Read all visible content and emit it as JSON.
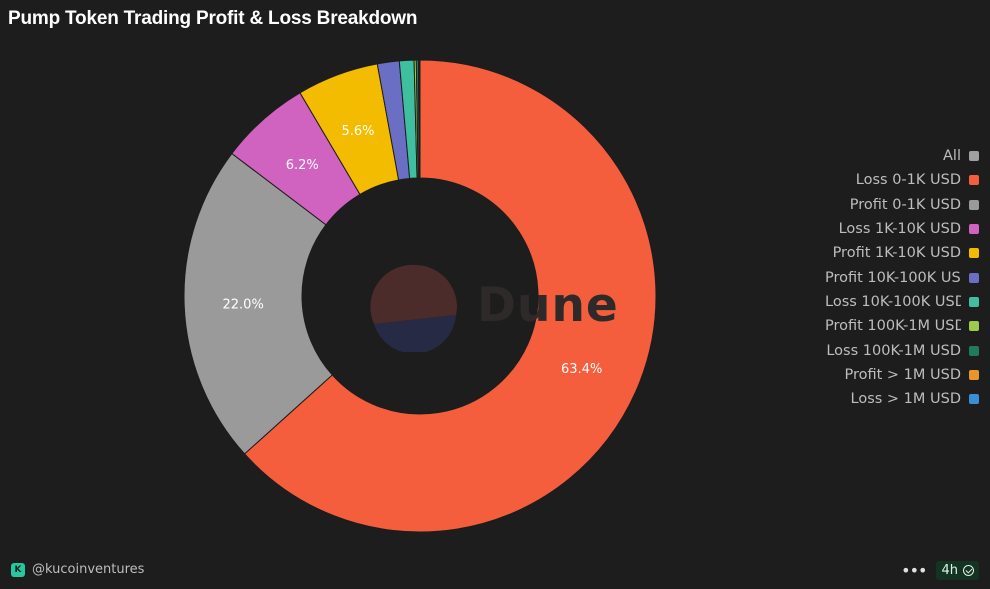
{
  "title": "Pump Token Trading Profit & Loss Breakdown",
  "chart_data": {
    "type": "pie",
    "donut": true,
    "legend_position": "right",
    "categories": [
      "All",
      "Loss 0-1K USD",
      "Profit 0-1K USD",
      "Loss 1K-10K USD",
      "Profit 1K-10K USD",
      "Profit 10K-100K USD",
      "Loss 10K-100K USD",
      "Profit 100K-1M USD",
      "Loss 100K-1M USD",
      "Profit > 1M USD",
      "Loss > 1M USD"
    ],
    "values": [
      0,
      63.4,
      22.0,
      6.2,
      5.6,
      1.5,
      1.0,
      0.15,
      0.15,
      0.05,
      0.05
    ],
    "data_labels": [
      "",
      "63.4%",
      "22.0%",
      "6.2%",
      "5.6%",
      "",
      "",
      "",
      "",
      "",
      ""
    ],
    "colors": [
      "#a0a0a0",
      "#f55e3c",
      "#9a9a9a",
      "#d062c0",
      "#f3bc00",
      "#6b6fc4",
      "#3fbf9f",
      "#9ccc4a",
      "#1f7a5e",
      "#e8962a",
      "#3a8fd4"
    ]
  },
  "watermark": {
    "text": "Dune"
  },
  "footer": {
    "author": "@kucoinventures",
    "refresh": "4h",
    "more_icon": "ellipsis-icon",
    "status_icon": "check-circle-icon"
  }
}
